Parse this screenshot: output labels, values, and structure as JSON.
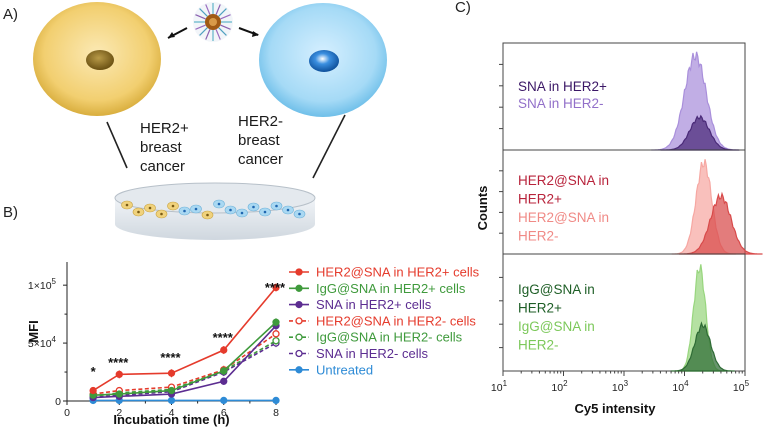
{
  "panels": {
    "a": {
      "letter": "A)",
      "left_cell_label": [
        "HER2+",
        "breast",
        "cancer"
      ],
      "right_cell_label": [
        "HER2-",
        "breast",
        "cancer"
      ],
      "colors": {
        "her2_pos_cell": "#f2d27a",
        "her2_neg_cell": "#a8dcf5"
      }
    },
    "b": {
      "letter": "B)"
    },
    "c": {
      "letter": "C)"
    }
  },
  "chart_data": [
    {
      "type": "line",
      "xlabel": "Incubation time (h)",
      "ylabel": "MFI",
      "x": [
        1,
        2,
        4,
        6,
        8
      ],
      "xlim": [
        0,
        8
      ],
      "ylim": [
        0,
        120000
      ],
      "xticks": [
        "0",
        "2",
        "4",
        "6",
        "8"
      ],
      "yticks": [
        {
          "value": 0,
          "label": "0"
        },
        {
          "value": 50000,
          "label": "5×10"
        },
        {
          "value": 100000,
          "label": "1×10"
        }
      ],
      "ytick_exponents": [
        "",
        "4",
        "5"
      ],
      "significance": [
        {
          "x": 1,
          "label": "*"
        },
        {
          "x": 2,
          "label": "****"
        },
        {
          "x": 4,
          "label": "****"
        },
        {
          "x": 6,
          "label": "****"
        },
        {
          "x": 8,
          "label": "****"
        }
      ],
      "series": [
        {
          "name": "HER2@SNA in HER2+ cells",
          "color": "#e53b2c",
          "style": "solid",
          "values": [
            9000,
            23000,
            24000,
            44000,
            98000
          ]
        },
        {
          "name": "IgG@SNA in HER2+ cells",
          "color": "#3f9a3c",
          "style": "solid",
          "values": [
            5000,
            6000,
            9000,
            26000,
            68000
          ]
        },
        {
          "name": "SNA in HER2+ cells",
          "color": "#5c2d91",
          "style": "solid",
          "values": [
            3000,
            4000,
            6000,
            17000,
            65000
          ]
        },
        {
          "name": "HER2@SNA in HER2- cells",
          "color": "#e53b2c",
          "style": "dashed",
          "values": [
            6000,
            9000,
            12000,
            27000,
            58000
          ]
        },
        {
          "name": "IgG@SNA in HER2- cells",
          "color": "#3f9a3c",
          "style": "dashed",
          "values": [
            4000,
            7000,
            10000,
            26000,
            52000
          ]
        },
        {
          "name": "SNA in HER2- cells",
          "color": "#5c2d91",
          "style": "dashed",
          "values": [
            3000,
            5000,
            8000,
            25000,
            50000
          ]
        },
        {
          "name": "Untreated",
          "color": "#2e8bd6",
          "style": "solid",
          "values": [
            500,
            500,
            500,
            500,
            500
          ]
        }
      ]
    },
    {
      "type": "area",
      "xlabel": "Cy5 intensity",
      "ylabel": "Counts",
      "xscale": "log",
      "xlim": [
        10,
        100000
      ],
      "xticks": [
        {
          "base": "10",
          "exp": "1"
        },
        {
          "base": "10",
          "exp": "2"
        },
        {
          "base": "10",
          "exp": "3"
        },
        {
          "base": "10",
          "exp": "4"
        },
        {
          "base": "10",
          "exp": "5"
        }
      ],
      "subplots": [
        {
          "labels": [
            {
              "text": "SNA in HER2+",
              "color": "#3b1766"
            },
            {
              "text": "SNA in HER2-",
              "color": "#9270c9"
            }
          ],
          "series": [
            {
              "name": "SNA in HER2+",
              "color": "#4a2a78",
              "peak_log10": 4.25,
              "width": 0.16,
              "height": 0.33
            },
            {
              "name": "SNA in HER2-",
              "color": "#a98fdb",
              "peak_log10": 4.18,
              "width": 0.18,
              "height": 0.95
            }
          ]
        },
        {
          "labels": [
            {
              "text": "HER2@SNA in",
              "color": "#b8233b"
            },
            {
              "text": "HER2+",
              "color": "#b8233b"
            },
            {
              "text": "HER2@SNA in",
              "color": "#f08a86"
            },
            {
              "text": "HER2-",
              "color": "#f08a86"
            }
          ],
          "series": [
            {
              "name": "HER2@SNA in HER2+",
              "color": "#d84a4a",
              "peak_log10": 4.6,
              "width": 0.17,
              "height": 0.6
            },
            {
              "name": "HER2@SNA in HER2-",
              "color": "#f6a7a2",
              "peak_log10": 4.32,
              "width": 0.13,
              "height": 0.95
            }
          ]
        },
        {
          "labels": [
            {
              "text": "IgG@SNA in",
              "color": "#1e5e26"
            },
            {
              "text": "HER2+",
              "color": "#1e5e26"
            },
            {
              "text": "IgG@SNA in",
              "color": "#7cc85a"
            },
            {
              "text": "HER2-",
              "color": "#7cc85a"
            }
          ],
          "series": [
            {
              "name": "IgG@SNA in HER2+",
              "color": "#2e6b35",
              "peak_log10": 4.3,
              "width": 0.13,
              "height": 0.42
            },
            {
              "name": "IgG@SNA in HER2-",
              "color": "#98d67e",
              "peak_log10": 4.25,
              "width": 0.1,
              "height": 0.95
            }
          ]
        }
      ]
    }
  ]
}
